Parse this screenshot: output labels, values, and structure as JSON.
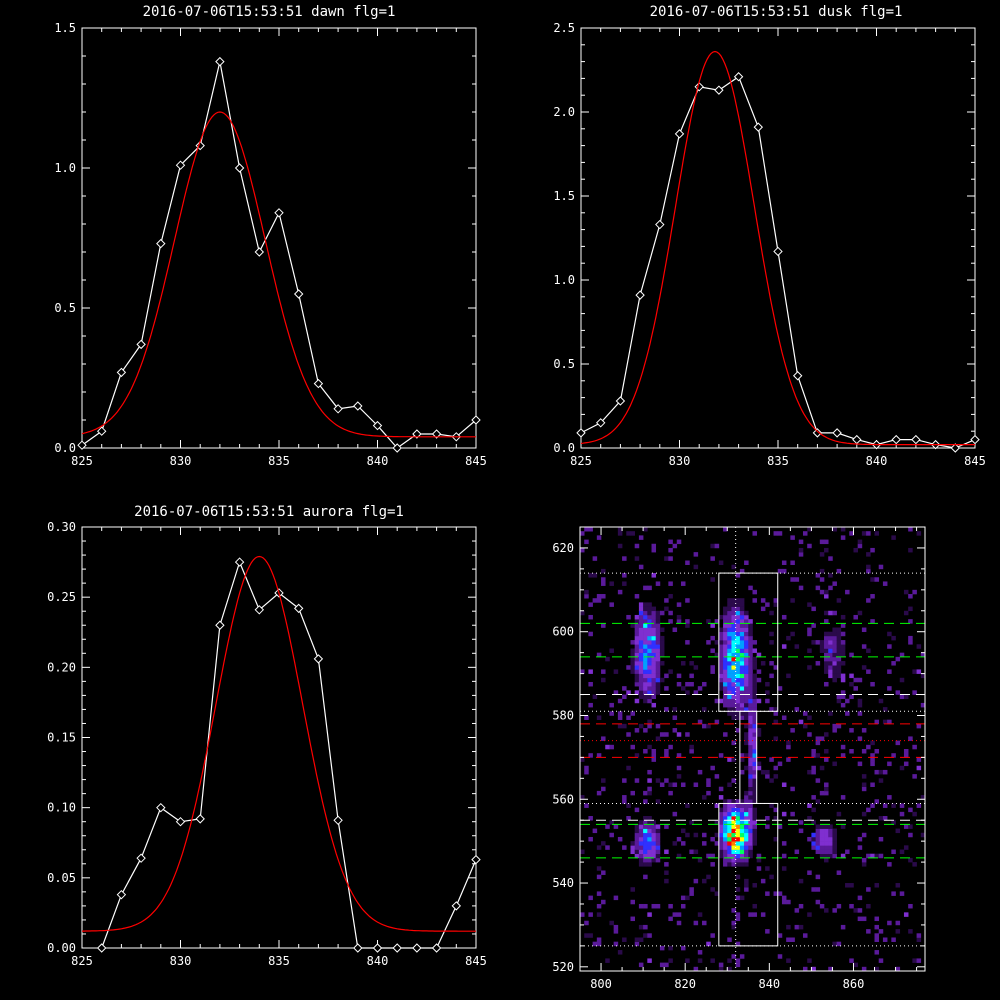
{
  "chart_data": [
    {
      "type": "line",
      "title": "2016-07-06T15:53:51 dawn flg=1",
      "xlim": [
        825,
        845
      ],
      "ylim": [
        0,
        1.5
      ],
      "xticks": [
        "825",
        "830",
        "835",
        "840",
        "845"
      ],
      "yticks": [
        "0.0",
        "0.5",
        "1.0",
        "1.5"
      ],
      "series": [
        {
          "style": "data",
          "color": "#ffffff",
          "x": [
            825,
            826,
            827,
            828,
            829,
            830,
            831,
            832,
            833,
            834,
            835,
            836,
            837,
            838,
            839,
            840,
            841,
            842,
            843,
            844,
            845
          ],
          "values": [
            0.01,
            0.06,
            0.27,
            0.37,
            0.73,
            1.01,
            1.08,
            1.38,
            1.0,
            0.7,
            0.84,
            0.55,
            0.23,
            0.14,
            0.15,
            0.08,
            0.0,
            0.05,
            0.05,
            0.04,
            0.1
          ]
        },
        {
          "style": "fit",
          "color": "#ff0000",
          "fit": {
            "type": "gaussian",
            "amplitude": 1.16,
            "center": 832.0,
            "sigma": 2.3,
            "offset": 0.04
          }
        }
      ]
    },
    {
      "type": "line",
      "title": "2016-07-06T15:53:51 dusk flg=1",
      "xlim": [
        825,
        845
      ],
      "ylim": [
        0,
        2.5
      ],
      "xticks": [
        "825",
        "830",
        "835",
        "840",
        "845"
      ],
      "yticks": [
        "0.0",
        "0.5",
        "1.0",
        "1.5",
        "2.0",
        "2.5"
      ],
      "series": [
        {
          "style": "data",
          "color": "#ffffff",
          "x": [
            825,
            826,
            827,
            828,
            829,
            830,
            831,
            832,
            833,
            834,
            835,
            836,
            837,
            838,
            839,
            840,
            841,
            842,
            843,
            844,
            845
          ],
          "values": [
            0.09,
            0.15,
            0.28,
            0.91,
            1.33,
            1.87,
            2.15,
            2.13,
            2.21,
            1.91,
            1.17,
            0.43,
            0.09,
            0.09,
            0.05,
            0.02,
            0.05,
            0.05,
            0.02,
            0.0,
            0.05
          ]
        },
        {
          "style": "fit",
          "color": "#ff0000",
          "fit": {
            "type": "gaussian",
            "amplitude": 2.34,
            "center": 831.8,
            "sigma": 2.0,
            "offset": 0.02
          }
        }
      ]
    },
    {
      "type": "line",
      "title": "2016-07-06T15:53:51 aurora flg=1",
      "xlim": [
        825,
        845
      ],
      "ylim": [
        0,
        0.3
      ],
      "xticks": [
        "825",
        "830",
        "835",
        "840",
        "845"
      ],
      "yticks": [
        "0.00",
        "0.05",
        "0.10",
        "0.15",
        "0.20",
        "0.25",
        "0.30"
      ],
      "series": [
        {
          "style": "data",
          "color": "#ffffff",
          "x": [
            826,
            827,
            828,
            829,
            830,
            831,
            832,
            833,
            834,
            835,
            836,
            837,
            838,
            839,
            840,
            841,
            842,
            843,
            844,
            845
          ],
          "values": [
            0.0,
            0.038,
            0.064,
            0.1,
            0.09,
            0.092,
            0.23,
            0.275,
            0.241,
            0.253,
            0.242,
            0.206,
            0.091,
            0.0,
            0.0,
            0.0,
            0.0,
            0.0,
            0.03,
            0.063
          ]
        },
        {
          "style": "fit",
          "color": "#ff0000",
          "fit": {
            "type": "gaussian",
            "amplitude": 0.267,
            "center": 834.0,
            "sigma": 2.2,
            "offset": 0.012
          }
        }
      ]
    },
    {
      "type": "heatmap",
      "title": "",
      "xlim": [
        795,
        877
      ],
      "ylim": [
        519,
        625
      ],
      "xticks": [
        "800",
        "820",
        "840",
        "860"
      ],
      "yticks": [
        "520",
        "540",
        "560",
        "580",
        "600",
        "620"
      ],
      "colormap": [
        "#000000",
        "#2a0a4a",
        "#5a1a9a",
        "#7f2fd0",
        "#3030ff",
        "#00a0ff",
        "#00ffff",
        "#00ff60",
        "#ffff00",
        "#ff8000",
        "#ff0000"
      ],
      "blobs": [
        {
          "x": 832,
          "y": 552,
          "sx": 2.2,
          "sy": 4.0,
          "peak": 1.0
        },
        {
          "x": 832,
          "y": 594,
          "sx": 2.3,
          "sy": 7.5,
          "peak": 0.62
        },
        {
          "x": 811,
          "y": 595,
          "sx": 2.2,
          "sy": 7.0,
          "peak": 0.45
        },
        {
          "x": 811,
          "y": 550,
          "sx": 2.0,
          "sy": 3.5,
          "peak": 0.42
        },
        {
          "x": 853,
          "y": 550,
          "sx": 2.0,
          "sy": 3.0,
          "peak": 0.3
        },
        {
          "x": 855,
          "y": 595,
          "sx": 2.5,
          "sy": 6.0,
          "peak": 0.18
        },
        {
          "x": 836,
          "y": 572,
          "sx": 1.0,
          "sy": 9.0,
          "peak": 0.3
        }
      ],
      "vline": {
        "x": 832,
        "color": "#ffffff",
        "style": "dotted"
      },
      "hlines": [
        {
          "y": 614,
          "color": "#ffffff",
          "style": "dotted"
        },
        {
          "y": 602,
          "color": "#00ff00",
          "style": "dashed"
        },
        {
          "y": 594,
          "color": "#00ff00",
          "style": "dashed"
        },
        {
          "y": 585,
          "color": "#ffffff",
          "style": "dashed"
        },
        {
          "y": 581,
          "color": "#ffffff",
          "style": "dotted"
        },
        {
          "y": 578,
          "color": "#ff0000",
          "style": "dashed"
        },
        {
          "y": 574,
          "color": "#ff0000",
          "style": "dotted"
        },
        {
          "y": 570,
          "color": "#ff0000",
          "style": "dashed"
        },
        {
          "y": 559,
          "color": "#ffffff",
          "style": "dotted"
        },
        {
          "y": 555,
          "color": "#ffffff",
          "style": "dashed"
        },
        {
          "y": 554,
          "color": "#00ff00",
          "style": "dashed"
        },
        {
          "y": 546,
          "color": "#00ff00",
          "style": "dashed"
        },
        {
          "y": 525,
          "color": "#ffffff",
          "style": "dotted"
        }
      ],
      "boxes": [
        {
          "x0": 828,
          "x1": 842,
          "y0": 581,
          "y1": 614,
          "color": "#ffffff"
        },
        {
          "x0": 833,
          "x1": 837,
          "y0": 559,
          "y1": 581,
          "color": "#ffffff"
        },
        {
          "x0": 828,
          "x1": 842,
          "y0": 525,
          "y1": 559,
          "color": "#ffffff"
        }
      ]
    }
  ]
}
